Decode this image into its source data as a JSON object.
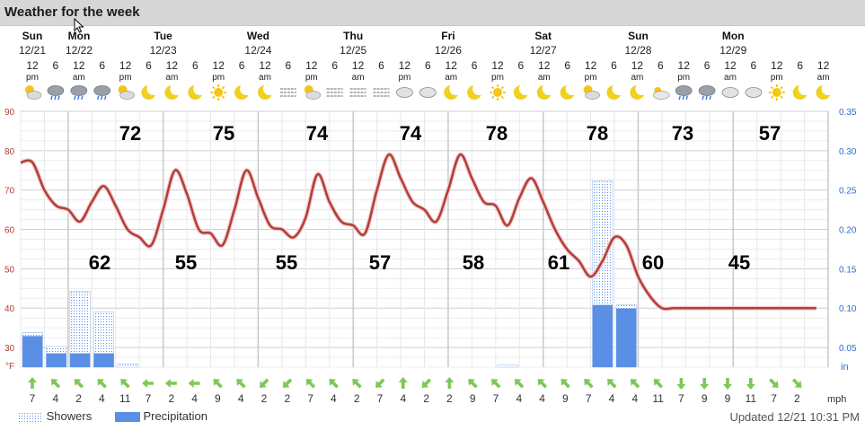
{
  "window": {
    "title": "Weather for the week"
  },
  "days": [
    {
      "name": "Sun",
      "date": "12/21"
    },
    {
      "name": "Mon",
      "date": "12/22"
    },
    {
      "name": "Tue",
      "date": "12/23"
    },
    {
      "name": "Wed",
      "date": "12/24"
    },
    {
      "name": "Thu",
      "date": "12/25"
    },
    {
      "name": "Fri",
      "date": "12/26"
    },
    {
      "name": "Sat",
      "date": "12/27"
    },
    {
      "name": "Sun",
      "date": "12/28"
    },
    {
      "name": "Mon",
      "date": "12/29"
    }
  ],
  "hours": [
    {
      "n": "12",
      "ap": "pm"
    },
    {
      "n": "6",
      "ap": ""
    },
    {
      "n": "12",
      "ap": "am"
    },
    {
      "n": "6",
      "ap": ""
    },
    {
      "n": "12",
      "ap": "pm"
    },
    {
      "n": "6",
      "ap": ""
    },
    {
      "n": "12",
      "ap": "am"
    },
    {
      "n": "6",
      "ap": ""
    },
    {
      "n": "12",
      "ap": "pm"
    },
    {
      "n": "6",
      "ap": ""
    },
    {
      "n": "12",
      "ap": "am"
    },
    {
      "n": "6",
      "ap": ""
    },
    {
      "n": "12",
      "ap": "pm"
    },
    {
      "n": "6",
      "ap": ""
    },
    {
      "n": "12",
      "ap": "am"
    },
    {
      "n": "6",
      "ap": ""
    },
    {
      "n": "12",
      "ap": "pm"
    },
    {
      "n": "6",
      "ap": ""
    },
    {
      "n": "12",
      "ap": "am"
    },
    {
      "n": "6",
      "ap": ""
    },
    {
      "n": "12",
      "ap": "pm"
    },
    {
      "n": "6",
      "ap": ""
    },
    {
      "n": "12",
      "ap": "am"
    },
    {
      "n": "6",
      "ap": ""
    },
    {
      "n": "12",
      "ap": "pm"
    },
    {
      "n": "6",
      "ap": ""
    },
    {
      "n": "12",
      "ap": "am"
    },
    {
      "n": "6",
      "ap": ""
    },
    {
      "n": "12",
      "ap": "pm"
    },
    {
      "n": "6",
      "ap": ""
    },
    {
      "n": "12",
      "ap": "am"
    },
    {
      "n": "6",
      "ap": ""
    },
    {
      "n": "12",
      "ap": "pm"
    },
    {
      "n": "6",
      "ap": ""
    },
    {
      "n": "12",
      "ap": "am"
    }
  ],
  "icons": [
    "partly-sunny-icon",
    "rain-cloud-icon",
    "rain-cloud-icon",
    "rain-cloud-icon",
    "partly-sunny-icon",
    "moon-icon",
    "moon-icon",
    "moon-icon",
    "sun-icon",
    "moon-icon",
    "moon-icon",
    "fog-icon",
    "partly-sunny-icon",
    "fog-icon",
    "fog-icon",
    "fog-icon",
    "cloud-icon",
    "cloud-icon",
    "moon-icon",
    "moon-icon",
    "sun-icon",
    "moon-icon",
    "moon-icon",
    "moon-icon",
    "partly-sunny-icon",
    "moon-icon",
    "moon-icon",
    "partly-cloudy-icon",
    "rain-cloud-icon",
    "rain-cloud-icon",
    "cloud-icon",
    "cloud-icon",
    "sun-icon",
    "moon-icon",
    "moon-icon"
  ],
  "left_axis": {
    "unit": "°F",
    "ticks": [
      "90",
      "80",
      "70",
      "60",
      "50",
      "40",
      "30"
    ]
  },
  "right_axis": {
    "unit": "in",
    "ticks": [
      "0.35",
      "0.30",
      "0.25",
      "0.20",
      "0.15",
      "0.10",
      "0.05"
    ]
  },
  "highs": [
    "72",
    "75",
    "74",
    "74",
    "78",
    "78",
    "73",
    "57"
  ],
  "lows": [
    "62",
    "55",
    "55",
    "57",
    "58",
    "61",
    "60",
    "45"
  ],
  "wind": {
    "unit": "mph",
    "speeds": [
      "7",
      "4",
      "2",
      "4",
      "11",
      "7",
      "2",
      "4",
      "9",
      "4",
      "2",
      "2",
      "7",
      "4",
      "2",
      "7",
      "4",
      "2",
      "2",
      "9",
      "7",
      "4",
      "4",
      "9",
      "7",
      "4",
      "4",
      "11",
      "7",
      "9",
      "9",
      "11",
      "7",
      "2"
    ]
  },
  "legend": {
    "showers": "Showers",
    "precipitation": "Precipitation"
  },
  "updated": "Updated 12/21 10:31 PM",
  "colors": {
    "temperature_line": "#b04035",
    "precipitation": "#5b8fe6",
    "showers": "#5b8fe6",
    "wind_arrow": "#7ec856",
    "left_axis_text": "#b04035",
    "right_axis_text": "#2f6fcf"
  },
  "chart_data": {
    "type": "line",
    "x_unit": "hours from Sun 12/21 12 pm",
    "temperature": {
      "x": [
        0,
        3,
        6,
        9,
        12,
        15,
        18,
        21,
        24,
        27,
        30,
        33,
        36,
        39,
        42,
        45,
        48,
        51,
        54,
        57,
        60,
        63,
        66,
        69,
        72,
        75,
        78,
        81,
        84,
        87,
        90,
        93,
        96,
        99,
        102,
        105,
        108,
        111,
        114,
        117,
        120,
        123,
        126,
        129,
        132,
        135,
        138,
        141,
        144,
        147,
        150,
        153,
        156,
        159,
        162,
        165,
        168,
        171,
        174,
        177,
        180,
        183,
        186,
        189,
        192,
        195,
        198,
        201,
        204
      ],
      "values": [
        77,
        77,
        70,
        66,
        65,
        62,
        67,
        71,
        66,
        60,
        58,
        56,
        65,
        75,
        69,
        60,
        59,
        56,
        65,
        75,
        68,
        61,
        60,
        58,
        63,
        74,
        67,
        62,
        61,
        59,
        70,
        79,
        73,
        67,
        65,
        62,
        70,
        79,
        73,
        67,
        66,
        61,
        68,
        73,
        67,
        60,
        55,
        52,
        48,
        52,
        58,
        56,
        48,
        43,
        40,
        40,
        40,
        40,
        40,
        40,
        40,
        40,
        40,
        40,
        40,
        40,
        40,
        40,
        40
      ],
      "ylim": [
        25,
        90
      ]
    },
    "precipitation_in": {
      "x_bins": [
        0,
        6,
        12,
        18,
        24
      ],
      "values": [
        0.045,
        0.02,
        0.02,
        0.02,
        0.0
      ],
      "later_bins": [
        144,
        150
      ],
      "later_values": [
        0.09,
        0.085
      ]
    },
    "showers_in": {
      "x_bins": [
        0,
        6,
        12,
        18,
        24
      ],
      "values": [
        0.05,
        0.03,
        0.11,
        0.08,
        0.005
      ],
      "later_bins": [
        120,
        144,
        150
      ],
      "later_values": [
        0.003,
        0.27,
        0.09
      ]
    },
    "ylabel_left": "°F",
    "ylabel_right": "in"
  }
}
